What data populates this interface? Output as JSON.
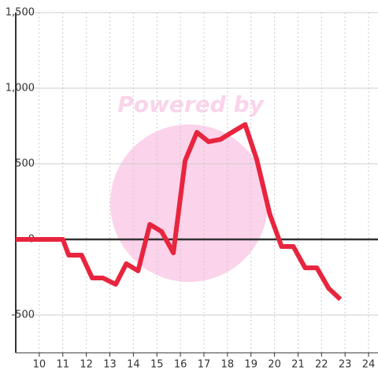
{
  "chart_data": {
    "type": "line",
    "watermark": "Powered by",
    "xlim": [
      9,
      24.4
    ],
    "xticks": [
      10,
      11,
      12,
      13,
      14,
      15,
      16,
      17,
      18,
      19,
      20,
      21,
      22,
      23,
      24
    ],
    "ylim": [
      -750,
      1500
    ],
    "yticks": [
      {
        "value": 1500,
        "label": "1,500"
      },
      {
        "value": 1000,
        "label": "1,000"
      },
      500,
      0,
      -500
    ],
    "grid": true,
    "series": [
      {
        "color": "#e8253f",
        "x": [
          9.0,
          11.0,
          11.25,
          11.8,
          12.25,
          12.7,
          13.25,
          13.7,
          14.2,
          14.7,
          15.2,
          15.7,
          16.2,
          16.7,
          17.2,
          17.7,
          18.25,
          18.75,
          19.25,
          19.8,
          20.3,
          20.8,
          21.3,
          21.8,
          22.3,
          22.8
        ],
        "values": [
          0,
          0,
          -104,
          -104,
          -255,
          -255,
          -297,
          -161,
          -208,
          99,
          52,
          -89,
          521,
          708,
          646,
          661,
          714,
          760,
          526,
          167,
          -47,
          -47,
          -188,
          -188,
          -323,
          -396
        ]
      }
    ]
  }
}
